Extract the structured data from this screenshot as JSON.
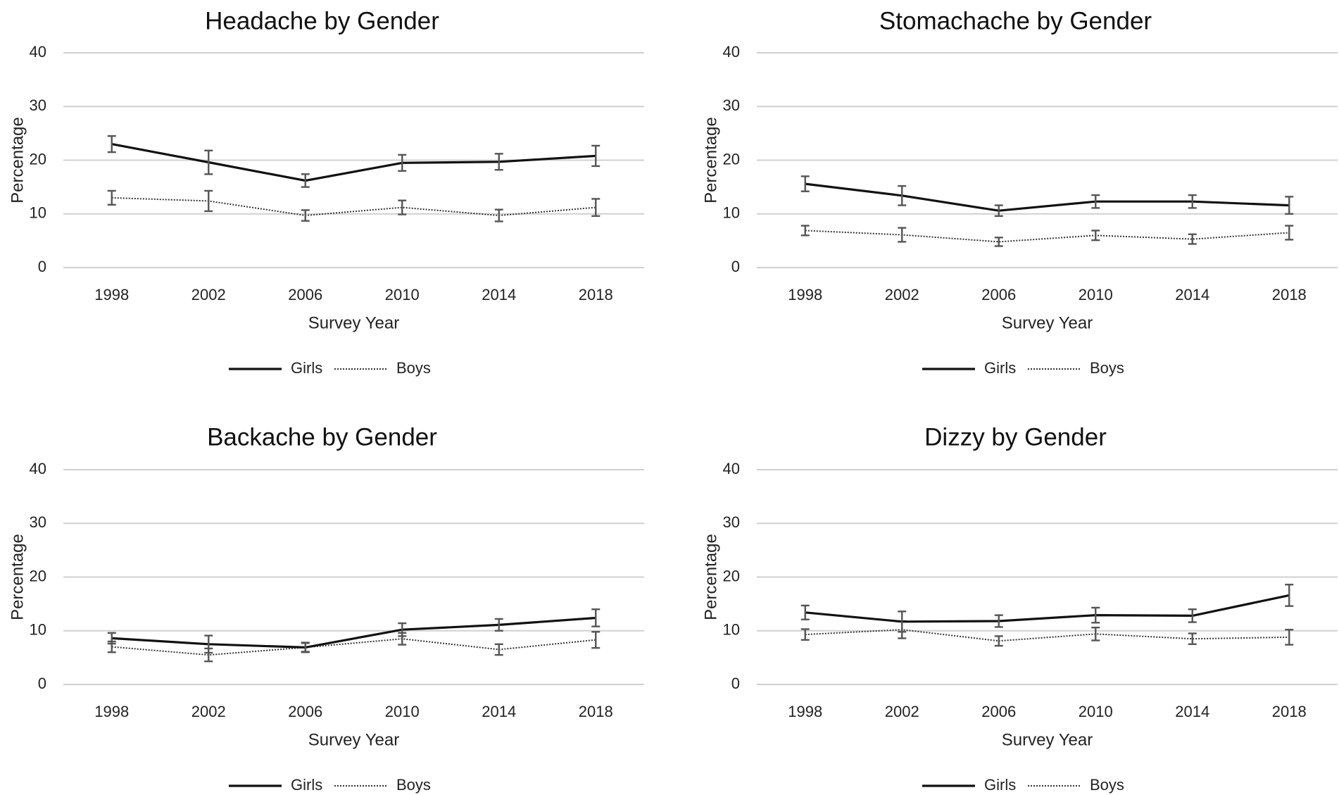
{
  "chart_data": [
    {
      "type": "line",
      "title": "Headache by Gender",
      "xlabel": "Survey Year",
      "ylabel": "Percentage",
      "categories": [
        "1998",
        "2002",
        "2006",
        "2010",
        "2014",
        "2018"
      ],
      "yticks": [
        "0",
        "10",
        "20",
        "30",
        "40"
      ],
      "ylim": [
        0,
        40
      ],
      "grid": true,
      "legend_position": "bottom",
      "series": [
        {
          "name": "Girls",
          "style": "solid",
          "values": [
            23.0,
            19.6,
            16.2,
            19.5,
            19.7,
            20.8
          ],
          "err": [
            1.5,
            2.2,
            1.2,
            1.5,
            1.5,
            1.9
          ]
        },
        {
          "name": "Boys",
          "style": "dotted",
          "values": [
            13.0,
            12.4,
            9.7,
            11.2,
            9.7,
            11.2
          ],
          "err": [
            1.3,
            1.9,
            1.0,
            1.3,
            1.1,
            1.6
          ]
        }
      ]
    },
    {
      "type": "line",
      "title": "Stomachache by Gender",
      "xlabel": "Survey Year",
      "ylabel": "Percentage",
      "categories": [
        "1998",
        "2002",
        "2006",
        "2010",
        "2014",
        "2018"
      ],
      "yticks": [
        "0",
        "10",
        "20",
        "30",
        "40"
      ],
      "ylim": [
        0,
        40
      ],
      "grid": true,
      "legend_position": "bottom",
      "series": [
        {
          "name": "Girls",
          "style": "solid",
          "values": [
            15.6,
            13.4,
            10.6,
            12.3,
            12.3,
            11.6
          ],
          "err": [
            1.4,
            1.8,
            1.0,
            1.2,
            1.2,
            1.6
          ]
        },
        {
          "name": "Boys",
          "style": "dotted",
          "values": [
            6.9,
            6.1,
            4.8,
            6.0,
            5.3,
            6.5
          ],
          "err": [
            0.9,
            1.3,
            0.8,
            0.9,
            0.9,
            1.3
          ]
        }
      ]
    },
    {
      "type": "line",
      "title": "Backache by Gender",
      "xlabel": "Survey Year",
      "ylabel": "Percentage",
      "categories": [
        "1998",
        "2002",
        "2006",
        "2010",
        "2014",
        "2018"
      ],
      "yticks": [
        "0",
        "10",
        "20",
        "30",
        "40"
      ],
      "ylim": [
        0,
        40
      ],
      "grid": true,
      "legend_position": "bottom",
      "series": [
        {
          "name": "Girls",
          "style": "solid",
          "values": [
            8.6,
            7.5,
            6.9,
            10.2,
            11.1,
            12.4
          ],
          "err": [
            1.0,
            1.6,
            0.8,
            1.2,
            1.1,
            1.6
          ]
        },
        {
          "name": "Boys",
          "style": "dotted",
          "values": [
            7.0,
            5.5,
            6.9,
            8.5,
            6.5,
            8.3
          ],
          "err": [
            1.0,
            1.2,
            0.9,
            1.1,
            1.0,
            1.5
          ]
        }
      ]
    },
    {
      "type": "line",
      "title": "Dizzy by Gender",
      "xlabel": "Survey Year",
      "ylabel": "Percentage",
      "categories": [
        "1998",
        "2002",
        "2006",
        "2010",
        "2014",
        "2018"
      ],
      "yticks": [
        "0",
        "10",
        "20",
        "30",
        "40"
      ],
      "ylim": [
        0,
        40
      ],
      "grid": true,
      "legend_position": "bottom",
      "series": [
        {
          "name": "Girls",
          "style": "solid",
          "values": [
            13.4,
            11.7,
            11.8,
            12.9,
            12.8,
            16.6
          ],
          "err": [
            1.3,
            1.9,
            1.1,
            1.4,
            1.2,
            2.0
          ]
        },
        {
          "name": "Boys",
          "style": "dotted",
          "values": [
            9.3,
            10.2,
            8.1,
            9.4,
            8.5,
            8.8
          ],
          "err": [
            1.0,
            1.6,
            0.9,
            1.2,
            1.0,
            1.4
          ]
        }
      ]
    }
  ]
}
